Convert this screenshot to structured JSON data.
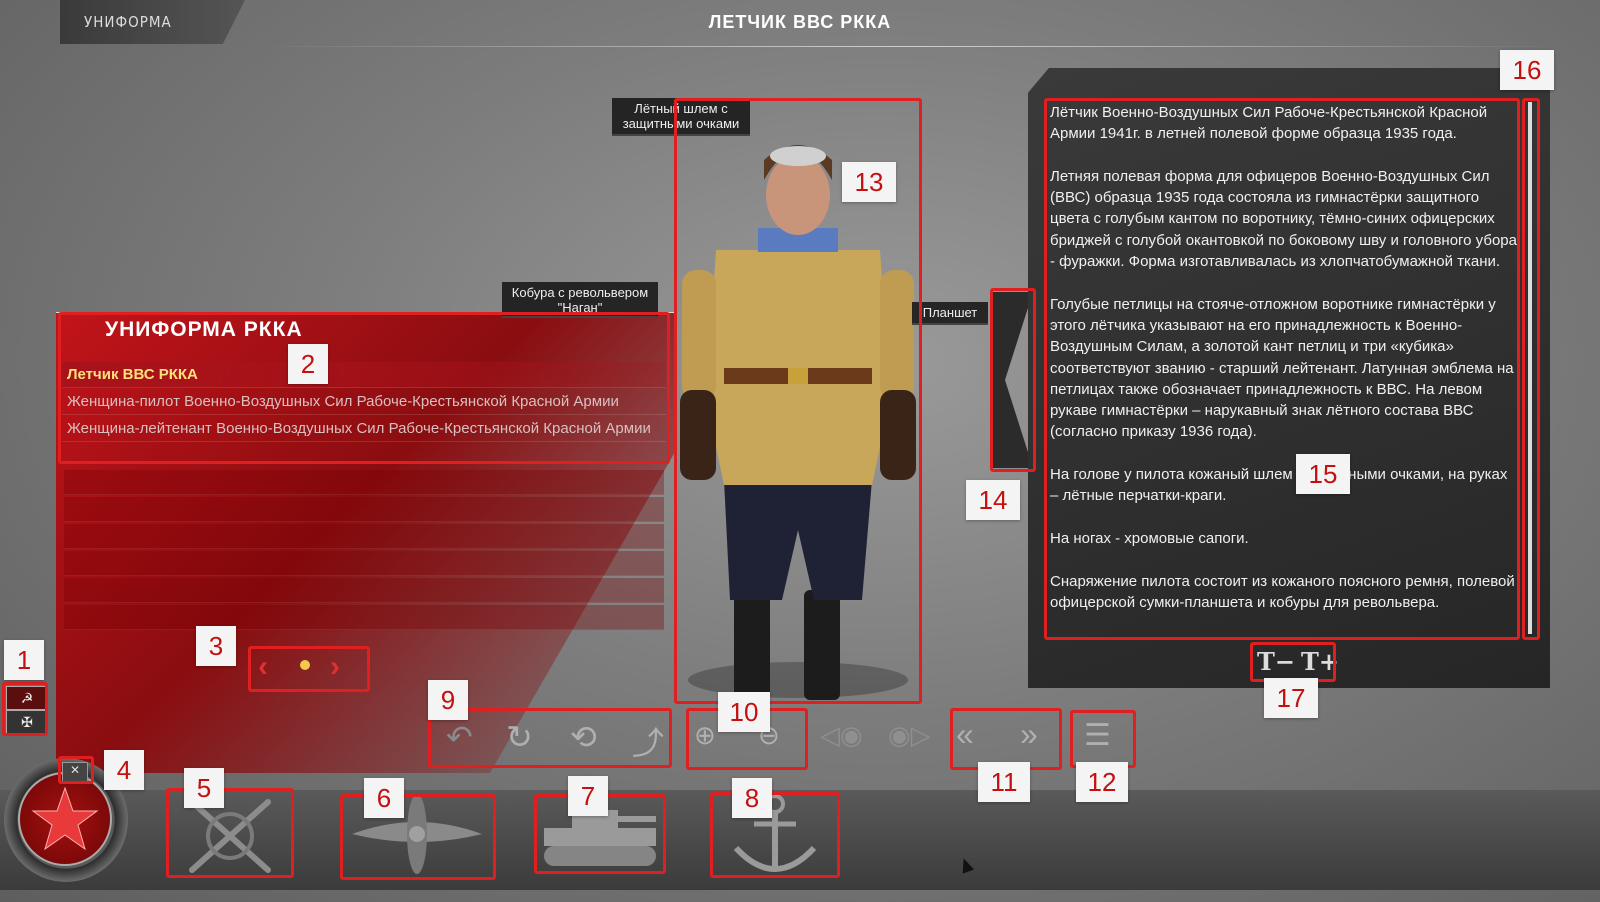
{
  "header": {
    "section_tab": "УНИФОРМА",
    "title": "ЛЕТЧИК ВВС РККА"
  },
  "uniform_list": {
    "title": "УНИФОРМА РККА",
    "items": [
      "Летчик ВВС РККА",
      "Женщина-пилот Военно-Воздушных Сил  Рабоче-Крестьянской Красной Армии",
      "Женщина-лейтенант Военно-Воздушных Сил Рабоче-Крестьянской Красной Армии"
    ],
    "selected_index": 0
  },
  "callouts": {
    "helmet": "Лётный шлем с\nзащитными очками",
    "holster": "Кобура с револьвером\n\"Наган\"",
    "tablet": "Планшет"
  },
  "description": "Лётчик Военно-Воздушных Сил Рабоче-Крестьянской Красной Армии 1941г. в летней полевой форме образца 1935 года.\n\nЛетняя полевая форма для офицеров Военно-Воздушных Сил (ВВС) образца 1935 года состояла из гимнастёрки защитного цвета с голубым кантом по воротнику, тёмно-синих офицерских бриджей с голубой окантовкой по боковому шву и головного убора - фуражки. Форма изготавливалась из хлопчатобумажной ткани.\n\nГолубые петлицы на стояче-отложном воротнике гимнастёрки у этого лётчика указывают на его принадлежность к Военно-Воздушным Силам, а золотой кант петлиц и три «кубика» соответствуют званию - старший лейтенант. Латунная эмблема на петлицах также обозначает принадлежность к ВВС. На левом рукаве гимнастёрки – нарукавный знак лётного состава ВВС (согласно приказу 1936 года).\n\nНа голове у пилота кожаный шлем с полетными очками, на руках – лётные перчатки-краги.\n\nНа ногах - хромовые сапоги.\n\nСнаряжение пилота состоит из кожаного поясного ремня, полевой офицерской сумки-планшета и кобуры для револьвера.",
  "font_controls": {
    "decrease": "T−",
    "increase": "T+"
  },
  "markers": [
    "1",
    "2",
    "3",
    "4",
    "5",
    "6",
    "7",
    "8",
    "9",
    "10",
    "11",
    "12",
    "13",
    "14",
    "15",
    "16",
    "17"
  ],
  "colors": {
    "accent": "#e02020",
    "panel_red": "#a8121a",
    "selected_text": "#ffe07a"
  },
  "icons": {
    "factions": [
      "ussr-flag-icon",
      "german-flag-icon"
    ],
    "categories": [
      "infantry-rifles-icon",
      "aviation-propeller-icon",
      "tank-icon",
      "navy-anchor-icon"
    ]
  }
}
